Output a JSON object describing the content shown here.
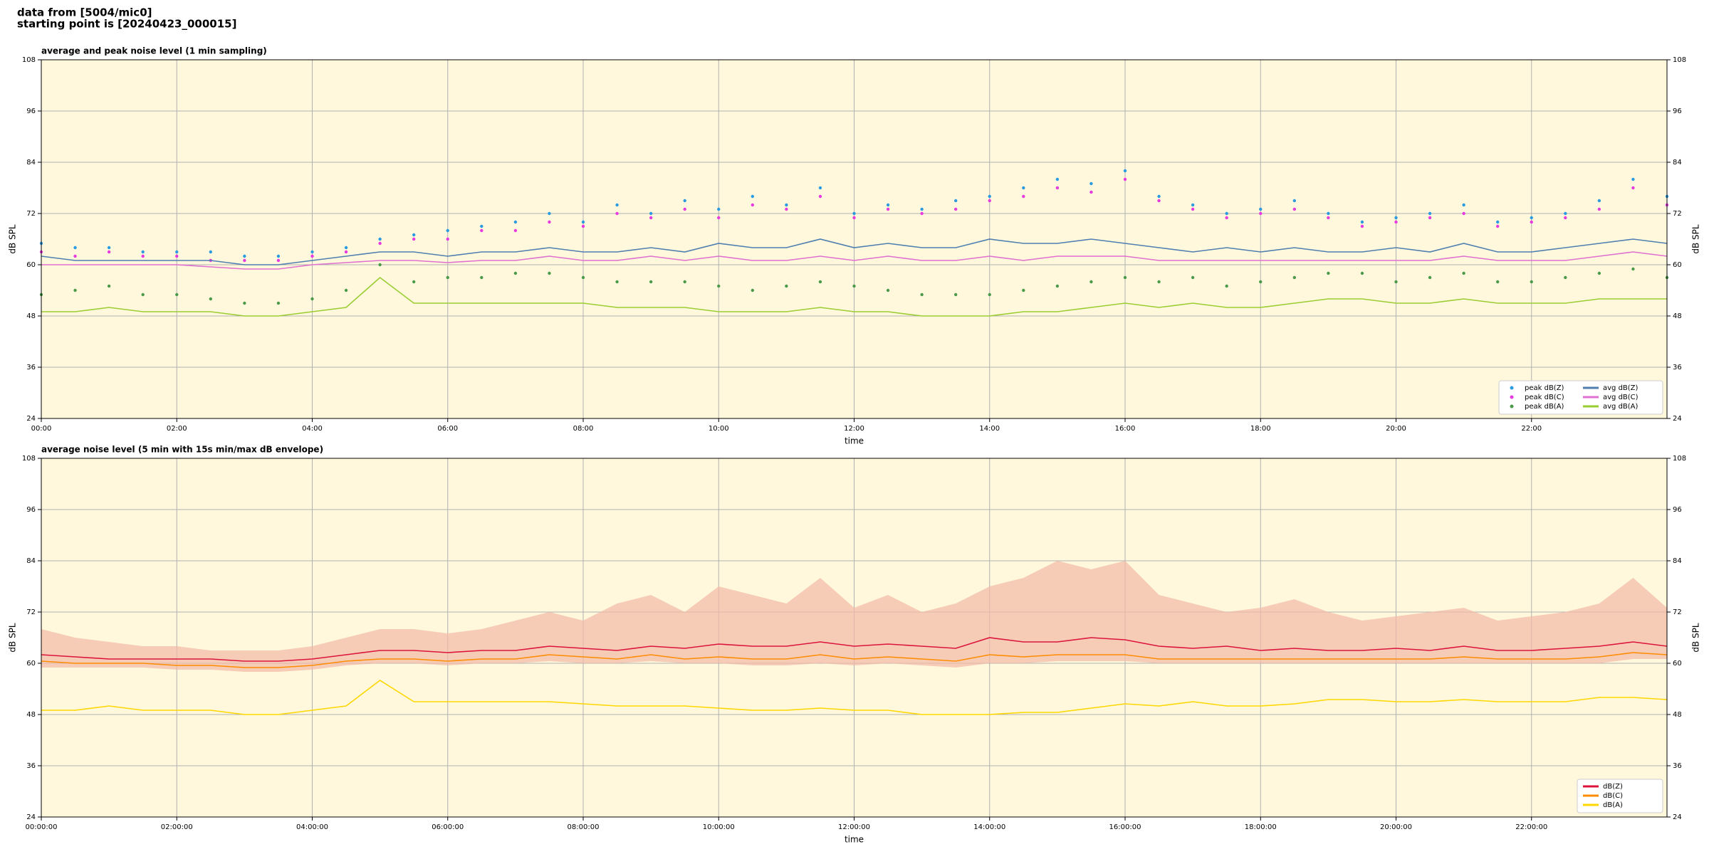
{
  "header": [
    "data from [5004/mic0]",
    "starting point is [20240423_000015]"
  ],
  "chart_data": [
    {
      "type": "line",
      "title": "average and peak noise level (1 min sampling)",
      "x_label": "time",
      "y_label": "dB SPL",
      "background": "#fff8dc",
      "grid": true,
      "xlim": [
        0,
        24
      ],
      "ylim": [
        24,
        108
      ],
      "xticks": [
        {
          "value": 0,
          "label": "00:00"
        },
        {
          "value": 2,
          "label": "02:00"
        },
        {
          "value": 4,
          "label": "04:00"
        },
        {
          "value": 6,
          "label": "06:00"
        },
        {
          "value": 8,
          "label": "08:00"
        },
        {
          "value": 10,
          "label": "10:00"
        },
        {
          "value": 12,
          "label": "12:00"
        },
        {
          "value": 14,
          "label": "14:00"
        },
        {
          "value": 16,
          "label": "16:00"
        },
        {
          "value": 18,
          "label": "18:00"
        },
        {
          "value": 20,
          "label": "20:00"
        },
        {
          "value": 22,
          "label": "22:00"
        }
      ],
      "yticks": [
        24,
        36,
        48,
        60,
        72,
        84,
        96,
        108
      ],
      "legend": {
        "loc": "lower right",
        "columns": 2
      },
      "x": [
        0,
        0.5,
        1,
        1.5,
        2,
        2.5,
        3,
        3.5,
        4,
        4.5,
        5,
        5.5,
        6,
        6.5,
        7,
        7.5,
        8,
        8.5,
        9,
        9.5,
        10,
        10.5,
        11,
        11.5,
        12,
        12.5,
        13,
        13.5,
        14,
        14.5,
        15,
        15.5,
        16,
        16.5,
        17,
        17.5,
        18,
        18.5,
        19,
        19.5,
        20,
        20.5,
        21,
        21.5,
        22,
        22.5,
        23,
        23.5,
        24
      ],
      "series": [
        {
          "name": "peak dB(Z)",
          "type": "scatter",
          "color": "#2a9be0",
          "values": [
            65,
            64,
            64,
            63,
            63,
            63,
            62,
            62,
            63,
            64,
            66,
            67,
            68,
            69,
            70,
            72,
            70,
            74,
            72,
            75,
            73,
            76,
            74,
            78,
            72,
            74,
            73,
            75,
            76,
            78,
            80,
            79,
            82,
            76,
            74,
            72,
            73,
            75,
            72,
            70,
            71,
            72,
            74,
            70,
            71,
            72,
            75,
            80,
            76
          ]
        },
        {
          "name": "peak dB(C)",
          "type": "scatter",
          "color": "#e838e0",
          "values": [
            63,
            62,
            63,
            62,
            62,
            61,
            61,
            61,
            62,
            63,
            65,
            66,
            66,
            68,
            68,
            70,
            69,
            72,
            71,
            73,
            71,
            74,
            73,
            76,
            71,
            73,
            72,
            73,
            75,
            76,
            78,
            77,
            80,
            75,
            73,
            71,
            72,
            73,
            71,
            69,
            70,
            71,
            72,
            69,
            70,
            71,
            73,
            78,
            74
          ]
        },
        {
          "name": "peak dB(A)",
          "type": "scatter",
          "color": "#4a9a4a",
          "values": [
            53,
            54,
            55,
            53,
            53,
            52,
            51,
            51,
            52,
            54,
            60,
            56,
            57,
            57,
            58,
            58,
            57,
            56,
            56,
            56,
            55,
            54,
            55,
            56,
            55,
            54,
            53,
            53,
            53,
            54,
            55,
            56,
            57,
            56,
            57,
            55,
            56,
            57,
            58,
            58,
            56,
            57,
            58,
            56,
            56,
            57,
            58,
            59,
            57
          ]
        },
        {
          "name": "avg dB(Z)",
          "type": "line",
          "color": "#4f7fb0",
          "values": [
            62,
            61,
            61,
            61,
            61,
            61,
            60,
            60,
            61,
            62,
            63,
            63,
            62,
            63,
            63,
            64,
            63,
            63,
            64,
            63,
            65,
            64,
            64,
            66,
            64,
            65,
            64,
            64,
            66,
            65,
            65,
            66,
            65,
            64,
            63,
            64,
            63,
            64,
            63,
            63,
            64,
            63,
            65,
            63,
            63,
            64,
            65,
            66,
            65
          ]
        },
        {
          "name": "avg dB(C)",
          "type": "line",
          "color": "#e070d0",
          "values": [
            60,
            60,
            60,
            60,
            60,
            59.5,
            59,
            59,
            60,
            60.5,
            61,
            61,
            60.5,
            61,
            61,
            62,
            61,
            61,
            62,
            61,
            62,
            61,
            61,
            62,
            61,
            62,
            61,
            61,
            62,
            61,
            62,
            62,
            62,
            61,
            61,
            61,
            61,
            61,
            61,
            61,
            61,
            61,
            62,
            61,
            61,
            61,
            62,
            63,
            62
          ]
        },
        {
          "name": "avg dB(A)",
          "type": "line",
          "color": "#9acd32",
          "values": [
            49,
            49,
            50,
            49,
            49,
            49,
            48,
            48,
            49,
            50,
            57,
            51,
            51,
            51,
            51,
            51,
            51,
            50,
            50,
            50,
            49,
            49,
            49,
            50,
            49,
            49,
            48,
            48,
            48,
            49,
            49,
            50,
            51,
            50,
            51,
            50,
            50,
            51,
            52,
            52,
            51,
            51,
            52,
            51,
            51,
            51,
            52,
            52,
            52
          ]
        }
      ]
    },
    {
      "type": "line",
      "title": "average noise level (5 min with 15s min/max dB envelope)",
      "x_label": "time",
      "y_label": "dB SPL",
      "background": "#fff8dc",
      "grid": true,
      "xlim": [
        0,
        24
      ],
      "ylim": [
        24,
        108
      ],
      "xticks": [
        {
          "value": 0,
          "label": "00:00:00"
        },
        {
          "value": 2,
          "label": "02:00:00"
        },
        {
          "value": 4,
          "label": "04:00:00"
        },
        {
          "value": 6,
          "label": "06:00:00"
        },
        {
          "value": 8,
          "label": "08:00:00"
        },
        {
          "value": 10,
          "label": "10:00:00"
        },
        {
          "value": 12,
          "label": "12:00:00"
        },
        {
          "value": 14,
          "label": "14:00:00"
        },
        {
          "value": 16,
          "label": "16:00:00"
        },
        {
          "value": 18,
          "label": "18:00:00"
        },
        {
          "value": 20,
          "label": "20:00:00"
        },
        {
          "value": 22,
          "label": "22:00:00"
        }
      ],
      "yticks": [
        24,
        36,
        48,
        60,
        72,
        84,
        96,
        108
      ],
      "legend": {
        "loc": "lower right",
        "columns": 1
      },
      "x": [
        0,
        0.5,
        1,
        1.5,
        2,
        2.5,
        3,
        3.5,
        4,
        4.5,
        5,
        5.5,
        6,
        6.5,
        7,
        7.5,
        8,
        8.5,
        9,
        9.5,
        10,
        10.5,
        11,
        11.5,
        12,
        12.5,
        13,
        13.5,
        14,
        14.5,
        15,
        15.5,
        16,
        16.5,
        17,
        17.5,
        18,
        18.5,
        19,
        19.5,
        20,
        20.5,
        21,
        21.5,
        22,
        22.5,
        23,
        23.5,
        24
      ],
      "envelope": {
        "color": "#f4b9a6",
        "upper": [
          68,
          66,
          65,
          64,
          64,
          63,
          63,
          63,
          64,
          66,
          68,
          68,
          67,
          68,
          70,
          72,
          70,
          74,
          76,
          72,
          78,
          76,
          74,
          80,
          73,
          76,
          72,
          74,
          78,
          80,
          84,
          82,
          84,
          76,
          74,
          72,
          73,
          75,
          72,
          70,
          71,
          72,
          73,
          70,
          71,
          72,
          74,
          80,
          73
        ],
        "lower": [
          59,
          59,
          59,
          59,
          58.5,
          58.5,
          58,
          58,
          58.5,
          59.5,
          60,
          60,
          59.5,
          60,
          60,
          60.5,
          60,
          60,
          60.5,
          60,
          60,
          59.5,
          59.5,
          60,
          59.5,
          60,
          59.5,
          59,
          60,
          60,
          60.5,
          60.5,
          60.5,
          60,
          60,
          60,
          60,
          60,
          60,
          60,
          60,
          60,
          60,
          60,
          60,
          60,
          60,
          61,
          61
        ]
      },
      "series": [
        {
          "name": "dB(Z)",
          "type": "line",
          "color": "#dc143c",
          "values": [
            62,
            61.5,
            61,
            61,
            61,
            61,
            60.5,
            60.5,
            61,
            62,
            63,
            63,
            62.5,
            63,
            63,
            64,
            63.5,
            63,
            64,
            63.5,
            64.5,
            64,
            64,
            65,
            64,
            64.5,
            64,
            63.5,
            66,
            65,
            65,
            66,
            65.5,
            64,
            63.5,
            64,
            63,
            63.5,
            63,
            63,
            63.5,
            63,
            64,
            63,
            63,
            63.5,
            64,
            65,
            64
          ]
        },
        {
          "name": "dB(C)",
          "type": "line",
          "color": "#ff8c00",
          "values": [
            60.5,
            60,
            60,
            60,
            59.5,
            59.5,
            59,
            59,
            59.5,
            60.5,
            61,
            61,
            60.5,
            61,
            61,
            62,
            61.5,
            61,
            62,
            61,
            61.5,
            61,
            61,
            62,
            61,
            61.5,
            61,
            60.5,
            62,
            61.5,
            62,
            62,
            62,
            61,
            61,
            61,
            61,
            61,
            61,
            61,
            61,
            61,
            61.5,
            61,
            61,
            61,
            61.5,
            62.5,
            62
          ]
        },
        {
          "name": "dB(A)",
          "type": "line",
          "color": "#ffd700",
          "values": [
            49,
            49,
            50,
            49,
            49,
            49,
            48,
            48,
            49,
            50,
            56,
            51,
            51,
            51,
            51,
            51,
            50.5,
            50,
            50,
            50,
            49.5,
            49,
            49,
            49.5,
            49,
            49,
            48,
            48,
            48,
            48.5,
            48.5,
            49.5,
            50.5,
            50,
            51,
            50,
            50,
            50.5,
            51.5,
            51.5,
            51,
            51,
            51.5,
            51,
            51,
            51,
            52,
            52,
            51.5
          ]
        }
      ]
    }
  ]
}
